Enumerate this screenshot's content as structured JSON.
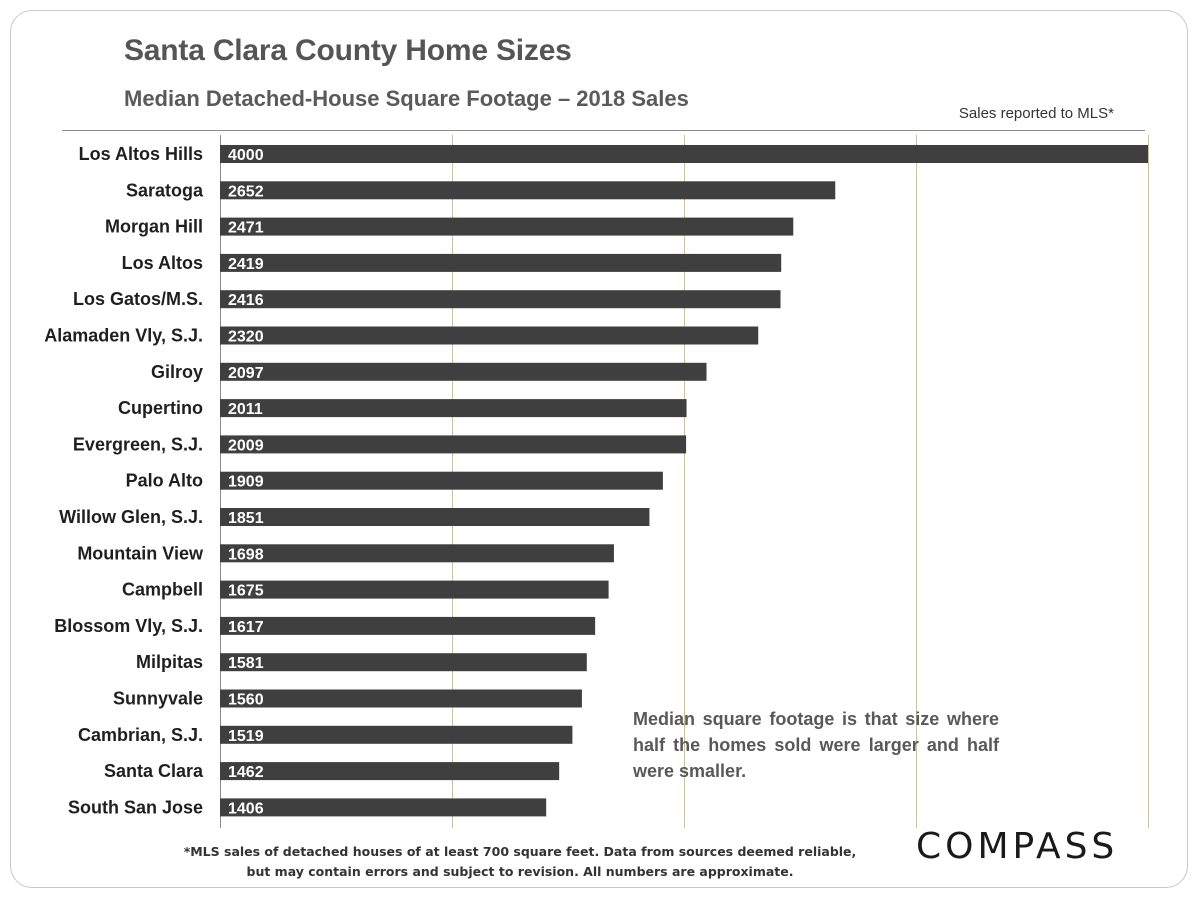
{
  "title": "Santa Clara County Home Sizes",
  "subtitle": "Median Detached-House Square Footage – 2018 Sales",
  "source_note": "Sales reported to MLS*",
  "annotation": "Median square footage is that size where half the homes sold were larger and half were smaller.",
  "footnote_line1": "*MLS sales of detached houses of at least 700 square feet. Data from sources deemed reliable,",
  "footnote_line2": "but may contain errors and subject to revision. All numbers are approximate.",
  "logo_text": "COMPASS",
  "colors": {
    "bar": "#3f3f3f",
    "grid": "#c8c3a4",
    "text": "#1f1f1f"
  },
  "chart_data": {
    "type": "bar",
    "orientation": "horizontal",
    "title": "Santa Clara County Home Sizes",
    "subtitle": "Median Detached-House Square Footage – 2018 Sales",
    "categories": [
      "Los Altos Hills",
      "Saratoga",
      "Morgan Hill",
      "Los Altos",
      "Los Gatos/M.S.",
      "Alamaden Vly, S.J.",
      "Gilroy",
      "Cupertino",
      "Evergreen, S.J.",
      "Palo Alto",
      "Willow Glen, S.J.",
      "Mountain View",
      "Campbell",
      "Blossom Vly, S.J.",
      "Milpitas",
      "Sunnyvale",
      "Cambrian, S.J.",
      "Santa Clara",
      "South San Jose"
    ],
    "values": [
      4000,
      2652,
      2471,
      2419,
      2416,
      2320,
      2097,
      2011,
      2009,
      1909,
      1851,
      1698,
      1675,
      1617,
      1581,
      1560,
      1519,
      1462,
      1406
    ],
    "xlim": [
      0,
      4000
    ],
    "gridlines_x": [
      1000,
      2000,
      3000,
      4000
    ],
    "grid": true,
    "legend": "none"
  }
}
